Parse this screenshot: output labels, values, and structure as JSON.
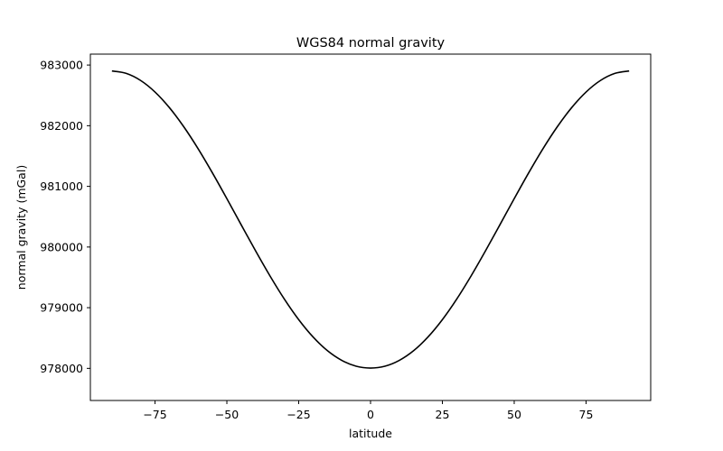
{
  "chart_data": {
    "type": "line",
    "title": "WGS84 normal gravity",
    "xlabel": "latitude",
    "ylabel": "normal gravity (mGal)",
    "xlim": [
      -97.5,
      97.5
    ],
    "ylim": [
      977470,
      983180
    ],
    "xticks": [
      -75,
      -50,
      -25,
      0,
      25,
      50,
      75
    ],
    "xtick_labels": [
      "−75",
      "−50",
      "−25",
      "0",
      "25",
      "50",
      "75"
    ],
    "yticks": [
      978000,
      979000,
      980000,
      981000,
      982000,
      983000
    ],
    "ytick_labels": [
      "978000",
      "979000",
      "980000",
      "981000",
      "982000",
      "983000"
    ],
    "grid": false,
    "series": [
      {
        "color": "#000000",
        "x": [
          -90,
          -85,
          -80,
          -75,
          -70,
          -65,
          -60,
          -55,
          -50,
          -45,
          -40,
          -35,
          -30,
          -25,
          -20,
          -15,
          -10,
          -5,
          0,
          5,
          10,
          15,
          20,
          25,
          30,
          35,
          40,
          45,
          50,
          55,
          60,
          65,
          70,
          75,
          80,
          85,
          90
        ],
        "y": [
          982902,
          982862,
          982745,
          982555,
          982298,
          981983,
          981620,
          981220,
          980797,
          980365,
          979936,
          979524,
          979142,
          978803,
          978517,
          978291,
          978131,
          978035,
          978005,
          978035,
          978131,
          978291,
          978517,
          978803,
          979142,
          979524,
          979936,
          980365,
          980797,
          981220,
          981620,
          981983,
          982298,
          982555,
          982745,
          982862,
          982902
        ]
      }
    ]
  }
}
